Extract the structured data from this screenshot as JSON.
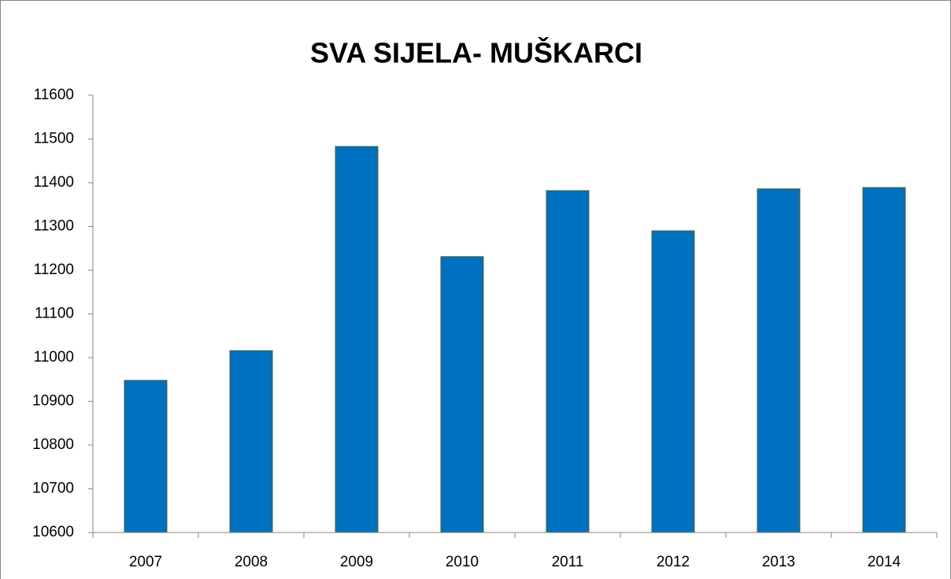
{
  "chart_data": {
    "type": "bar",
    "title": "SVA SIJELA- MUŠKARCI",
    "categories": [
      "2007",
      "2008",
      "2009",
      "2010",
      "2011",
      "2012",
      "2013",
      "2014"
    ],
    "values": [
      10948,
      11016,
      11483,
      11231,
      11382,
      11290,
      11386,
      11389
    ],
    "color": "#0070c0",
    "ylim": [
      10600,
      11600
    ],
    "yticks": [
      10600,
      10700,
      10800,
      10900,
      11000,
      11100,
      11200,
      11300,
      11400,
      11500,
      11600
    ],
    "grid": false
  }
}
